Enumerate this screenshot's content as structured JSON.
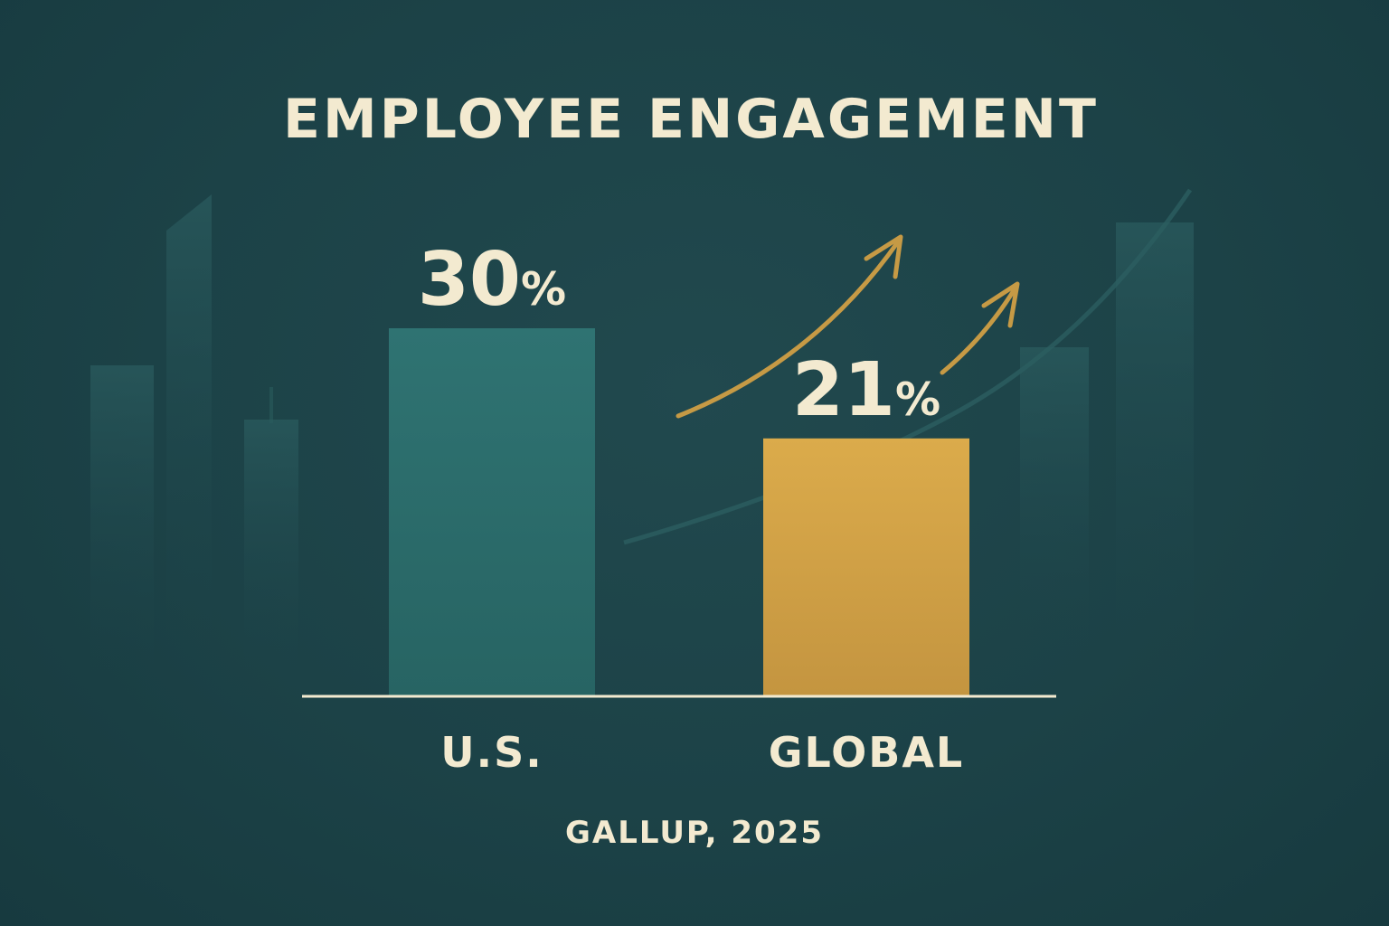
{
  "chart_data": {
    "type": "bar",
    "title": "EMPLOYEE ENGAGEMENT",
    "categories": [
      "U.S.",
      "GLOBAL"
    ],
    "values": [
      30,
      21
    ],
    "value_labels": [
      "30",
      "21"
    ],
    "unit": "%",
    "ylim": [
      0,
      33
    ],
    "grid": false,
    "legend": "none",
    "source": "GALLUP, 2025",
    "bar_colors": [
      "#2e6e6d",
      "#d6a748"
    ],
    "text_color": "#f3ead0",
    "accent_color": "#c69a45",
    "background_color": "#1d4449"
  }
}
